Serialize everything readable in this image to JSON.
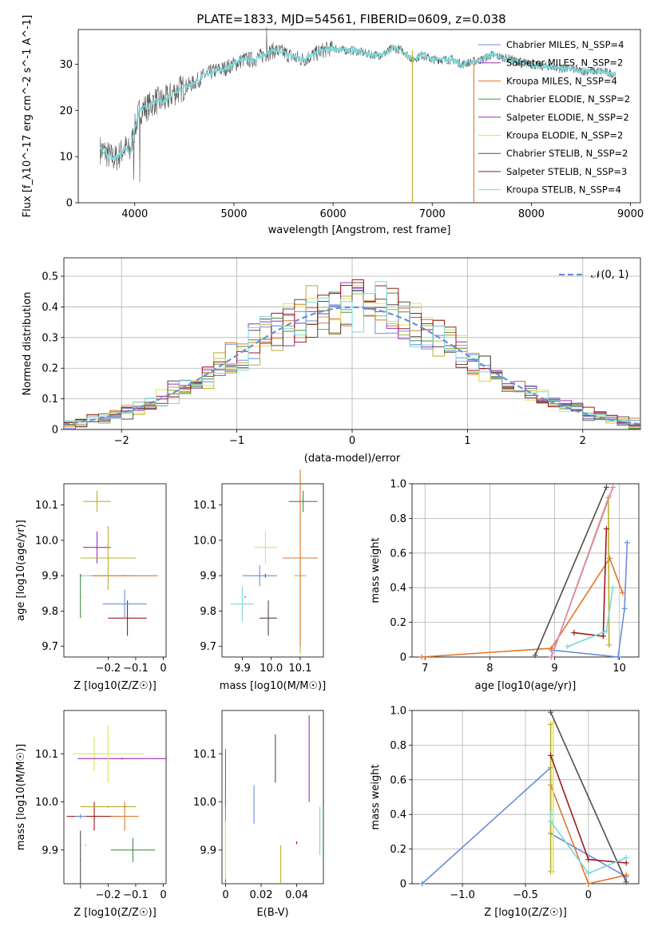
{
  "title": "PLATE=1833, MJD=54561, FIBERID=0609, z=0.038",
  "colors": [
    "#6a8fd8",
    "#e0752a",
    "#b8b030",
    "#4b8a45",
    "#9a30b8",
    "#e0e060",
    "#5a4a4a",
    "#a01818",
    "#7ad8d8"
  ],
  "chart_data": [
    {
      "id": "spectrum",
      "type": "line",
      "title": "PLATE=1833, MJD=54561, FIBERID=0609, z=0.038",
      "xlabel": "wavelength [Angstrom, rest frame]",
      "ylabel": "Flux [f_λ10^-17 erg cm^-2 s^-1 A^-1]",
      "xlim": [
        3430,
        9100
      ],
      "ylim": [
        0,
        37.5
      ],
      "xticks": [
        4000,
        5000,
        6000,
        7000,
        8000,
        9000
      ],
      "yticks": [
        0,
        10,
        20,
        30
      ],
      "grid": false,
      "legend_position": "top-right",
      "spectrum_x": [
        3650,
        3700,
        3750,
        3800,
        3850,
        3900,
        3950,
        4000,
        4050,
        4100,
        4150,
        4200,
        4300,
        4400,
        4500,
        4600,
        4700,
        4800,
        4900,
        5000,
        5100,
        5200,
        5300,
        5400,
        5500,
        5600,
        5700,
        5800,
        5900,
        6000,
        6100,
        6200,
        6300,
        6400,
        6500,
        6600,
        6700,
        6800,
        6900,
        7000,
        7100,
        7200,
        7300,
        7400,
        7500,
        7600,
        7700,
        7800,
        7900,
        8000,
        8100,
        8200,
        8300,
        8400,
        8500,
        8600,
        8700,
        8800,
        8850
      ],
      "spectrum_y": [
        11.5,
        11,
        10,
        9.5,
        10.5,
        12,
        11,
        16,
        20,
        20.5,
        21,
        22,
        22,
        24,
        25,
        26,
        27.5,
        28.5,
        29,
        30,
        31,
        31,
        32,
        33,
        32.5,
        31.5,
        31,
        32,
        33,
        33.5,
        33,
        33,
        32.5,
        32,
        32,
        33.5,
        33,
        31,
        32,
        31,
        31,
        31,
        30,
        30.5,
        31,
        32,
        31.5,
        31,
        30.5,
        30,
        29.5,
        29.5,
        29,
        29,
        28.5,
        28.5,
        28.5,
        28,
        28
      ],
      "series": [
        {
          "name": "Chabrier MILES, N_SSP=4"
        },
        {
          "name": "Salpeter MILES, N_SSP=2"
        },
        {
          "name": "Kroupa MILES, N_SSP=4"
        },
        {
          "name": "Chabrier ELODIE, N_SSP=2"
        },
        {
          "name": "Salpeter ELODIE, N_SSP=2"
        },
        {
          "name": "Kroupa ELODIE, N_SSP=2"
        },
        {
          "name": "Chabrier STELIB, N_SSP=2"
        },
        {
          "name": "Salpeter STELIB, N_SSP=3"
        },
        {
          "name": "Kroupa STELIB, N_SSP=4"
        }
      ]
    },
    {
      "id": "residuals",
      "type": "line",
      "xlabel": "(data-model)/error",
      "ylabel": "Normed distribution",
      "xlim": [
        -2.5,
        2.5
      ],
      "ylim": [
        0,
        0.56
      ],
      "xticks": [
        -2,
        -1,
        0,
        1,
        2
      ],
      "yticks": [
        0.0,
        0.1,
        0.2,
        0.3,
        0.4,
        0.5
      ],
      "grid": true,
      "legend_position": "top-right",
      "legend": [
        "𝒩(0, 1)"
      ]
    },
    {
      "id": "age_vs_Z",
      "type": "scatter",
      "xlabel": "Z [log10(Z/Z☉)]",
      "ylabel": "age [log10(age/yr)]",
      "xlim": [
        -0.36,
        0.01
      ],
      "ylim": [
        9.67,
        10.16
      ],
      "xticks": [
        -0.2,
        -0.1,
        0.0
      ],
      "yticks": [
        9.7,
        9.8,
        9.9,
        10.0,
        10.1
      ],
      "points": [
        {
          "x": -0.24,
          "y": 10.11,
          "xe": 0.05,
          "ye": 0.03
        },
        {
          "x": -0.24,
          "y": 9.98,
          "xe": 0.05,
          "ye": 0.045
        },
        {
          "x": -0.3,
          "y": 9.9,
          "xe": 0.002,
          "ye": 0.005
        },
        {
          "x": -0.2,
          "y": 9.9,
          "xe": 0.1,
          "ye": 0.002
        },
        {
          "x": -0.14,
          "y": 9.9,
          "xe": 0.12,
          "ye": 0.002
        },
        {
          "x": -0.3,
          "y": 9.84,
          "xe": 0.002,
          "ye": 0.06
        },
        {
          "x": -0.28,
          "y": 9.84,
          "xe": 0.001,
          "ye": 0.001
        },
        {
          "x": -0.13,
          "y": 9.78,
          "xe": 0.07,
          "ye": 0.05
        },
        {
          "x": -0.14,
          "y": 9.82,
          "xe": 0.08,
          "ye": 0.04
        },
        {
          "x": -0.2,
          "y": 9.95,
          "xe": 0.1,
          "ye": 0.09
        }
      ]
    },
    {
      "id": "age_vs_mass",
      "type": "scatter",
      "xlabel": "mass [log10(M/M☉)]",
      "xlim": [
        9.83,
        10.18
      ],
      "ylim": [
        9.67,
        10.16
      ],
      "xticks": [
        9.9,
        10.0,
        10.1
      ],
      "yticks": [
        9.7,
        9.8,
        9.9,
        10.0,
        10.1
      ],
      "points": [
        {
          "x": 10.11,
          "y": 10.11,
          "xe": 0.05,
          "ye": 0.03
        },
        {
          "x": 9.98,
          "y": 9.98,
          "xe": 0.04,
          "ye": 0.045
        },
        {
          "x": 9.98,
          "y": 9.9,
          "xe": 0.002,
          "ye": 0.005
        },
        {
          "x": 9.96,
          "y": 9.9,
          "xe": 0.06,
          "ye": 0.03
        },
        {
          "x": 10.1,
          "y": 9.9,
          "xe": 0.02,
          "ye": 0.22
        },
        {
          "x": 9.91,
          "y": 9.84,
          "xe": 0.002,
          "ye": 0.002
        },
        {
          "x": 9.99,
          "y": 9.78,
          "xe": 0.03,
          "ye": 0.05
        },
        {
          "x": 9.9,
          "y": 9.82,
          "xe": 0.04,
          "ye": 0.05
        },
        {
          "x": 10.1,
          "y": 9.95,
          "xe": 0.06,
          "ye": 0.25
        }
      ]
    },
    {
      "id": "mw_vs_age",
      "type": "line",
      "xlabel": "age [log10(age/yr)]",
      "ylabel": "mass weight",
      "xlim": [
        6.8,
        10.3
      ],
      "ylim": [
        0,
        1.0
      ],
      "xticks": [
        7,
        8,
        9,
        10
      ],
      "yticks": [
        0.0,
        0.2,
        0.4,
        0.6,
        0.8,
        1.0
      ],
      "grid": true,
      "series": [
        {
          "name": "Chabrier MILES",
          "x": [
            8.95,
            9.98,
            10.08,
            10.12
          ],
          "y": [
            0.04,
            0.0,
            0.28,
            0.66
          ]
        },
        {
          "name": "Salpeter MILES",
          "x": [
            6.95,
            8.95,
            9.85,
            10.05
          ],
          "y": [
            0.0,
            0.05,
            0.57,
            0.37
          ]
        },
        {
          "name": "Kroupa MILES",
          "x": [
            8.95,
            9.83,
            9.84
          ],
          "y": [
            0.0,
            0.92,
            0.07
          ]
        },
        {
          "name": "Kroupa ELODIE",
          "x": [
            8.95,
            9.85
          ],
          "y": [
            0.0,
            0.93
          ]
        },
        {
          "name": "Salpeter ELODIE",
          "x": [
            8.95,
            9.9
          ],
          "y": [
            0.0,
            0.98
          ]
        },
        {
          "name": "Chabrier STELIB",
          "x": [
            8.7,
            9.8
          ],
          "y": [
            0.01,
            0.98
          ]
        },
        {
          "name": "Salpeter STELIB",
          "x": [
            9.3,
            9.75,
            9.8
          ],
          "y": [
            0.14,
            0.12,
            0.74
          ]
        },
        {
          "name": "Kroupa STELIB",
          "x": [
            9.2,
            9.8,
            9.9
          ],
          "y": [
            0.06,
            0.15,
            0.4
          ]
        }
      ]
    },
    {
      "id": "mass_vs_Z",
      "type": "scatter",
      "xlabel": "Z [log10(Z/Z☉)]",
      "ylabel": "mass [log10(M/M☉)]",
      "xlim": [
        -0.36,
        0.01
      ],
      "ylim": [
        9.83,
        10.19
      ],
      "xticks": [
        -0.2,
        -0.1,
        0.0
      ],
      "yticks": [
        9.9,
        10.0,
        10.1
      ],
      "points": [
        {
          "x": -0.25,
          "y": 10.1,
          "xe": 0.05,
          "ye": 0.035
        },
        {
          "x": -0.25,
          "y": 9.97,
          "xe": 0.1,
          "ye": 0.03
        },
        {
          "x": -0.3,
          "y": 9.97,
          "xe": 0.02,
          "ye": 0.005
        },
        {
          "x": -0.2,
          "y": 9.99,
          "xe": 0.1,
          "ye": 0.002
        },
        {
          "x": -0.15,
          "y": 10.09,
          "xe": 0.16,
          "ye": 0.002
        },
        {
          "x": -0.3,
          "y": 9.88,
          "xe": 0.002,
          "ye": 0.06
        },
        {
          "x": -0.28,
          "y": 9.91,
          "xe": 0.002,
          "ye": 0.002
        },
        {
          "x": -0.14,
          "y": 9.97,
          "xe": 0.05,
          "ye": 0.03
        },
        {
          "x": -0.11,
          "y": 9.9,
          "xe": 0.08,
          "ye": 0.025
        },
        {
          "x": -0.2,
          "y": 10.1,
          "xe": 0.13,
          "ye": 0.06
        }
      ]
    },
    {
      "id": "mass_vs_ebv",
      "type": "scatter",
      "xlabel": "E(B-V)",
      "xlim": [
        -0.002,
        0.055
      ],
      "ylim": [
        9.83,
        10.19
      ],
      "xticks": [
        0.0,
        0.02,
        0.04
      ],
      "yticks": [
        9.9,
        10.0,
        10.1
      ],
      "points": [
        {
          "x": 0.028,
          "y": 10.09,
          "xe": 0.0,
          "ye": 0.05
        },
        {
          "x": 0.053,
          "y": 9.94,
          "xe": 0.0,
          "ye": 0.05
        },
        {
          "x": 0.0,
          "y": 9.93,
          "xe": 0.0,
          "ye": 0.1
        },
        {
          "x": 0.0,
          "y": 10.05,
          "xe": 0.0,
          "ye": 0.06
        },
        {
          "x": 0.0,
          "y": 9.9,
          "xe": 0.0,
          "ye": 0.06
        },
        {
          "x": 0.04,
          "y": 9.915,
          "xe": 0.0,
          "ye": 0.003
        },
        {
          "x": 0.016,
          "y": 9.995,
          "xe": 0.0,
          "ye": 0.04
        },
        {
          "x": 0.031,
          "y": 9.87,
          "xe": 0.0,
          "ye": 0.04
        },
        {
          "x": 0.047,
          "y": 10.09,
          "xe": 0.0,
          "ye": 0.09
        }
      ]
    },
    {
      "id": "mw_vs_Z",
      "type": "line",
      "xlabel": "Z [log10(Z/Z☉)]",
      "ylabel": "mass weight",
      "xlim": [
        -1.4,
        0.4
      ],
      "ylim": [
        0,
        1.0
      ],
      "xticks": [
        -1.0,
        -0.5,
        0.0
      ],
      "yticks": [
        0.0,
        0.2,
        0.4,
        0.6,
        0.8,
        1.0
      ],
      "grid": true,
      "series": [
        {
          "name": "Chabrier MILES",
          "x": [
            -1.32,
            -0.3,
            -0.3,
            0.3
          ],
          "y": [
            0.0,
            0.67,
            0.29,
            0.04
          ]
        },
        {
          "name": "Salpeter MILES",
          "x": [
            -0.3,
            0.0,
            0.3
          ],
          "y": [
            0.57,
            0.0,
            0.05
          ]
        },
        {
          "name": "Kroupa MILES",
          "x": [
            -0.3,
            -0.3
          ],
          "y": [
            0.07,
            0.92
          ]
        },
        {
          "name": "Kroupa ELODIE",
          "x": [
            -0.28,
            -0.28
          ],
          "y": [
            0.07,
            0.93
          ]
        },
        {
          "name": "Chabrier STELIB",
          "x": [
            -0.3,
            0.3
          ],
          "y": [
            0.99,
            0.01
          ]
        },
        {
          "name": "Salpeter STELIB",
          "x": [
            -0.3,
            0.0,
            0.3
          ],
          "y": [
            0.74,
            0.14,
            0.12
          ]
        },
        {
          "name": "Kroupa STELIB",
          "x": [
            -0.3,
            -0.3,
            0.0,
            0.3
          ],
          "y": [
            0.4,
            0.36,
            0.06,
            0.15
          ]
        }
      ]
    }
  ]
}
